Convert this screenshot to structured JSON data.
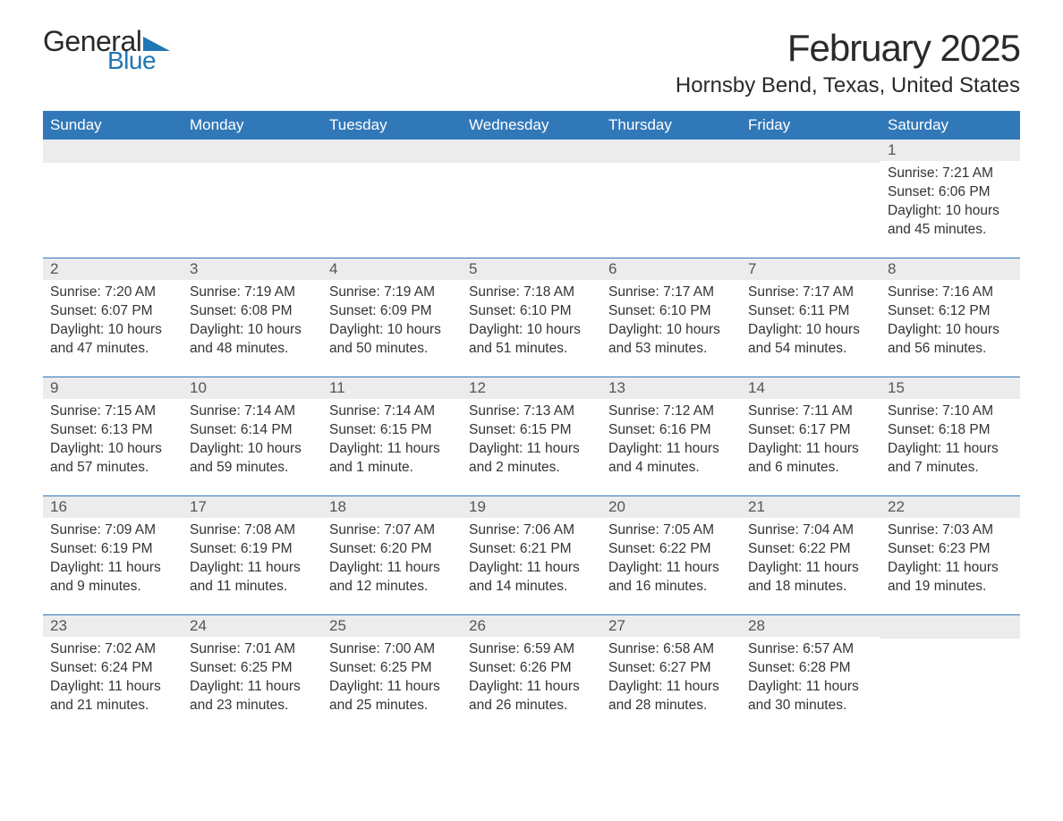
{
  "logo": {
    "text1": "General",
    "text2": "Blue",
    "accent_color": "#1f77b4"
  },
  "title": "February 2025",
  "location": "Hornsby Bend, Texas, United States",
  "colors": {
    "header_bg": "#3178b8",
    "header_text": "#ffffff",
    "daynum_bg": "#ececec",
    "border": "#3178b8",
    "text": "#333333"
  },
  "weekdays": [
    "Sunday",
    "Monday",
    "Tuesday",
    "Wednesday",
    "Thursday",
    "Friday",
    "Saturday"
  ],
  "weeks": [
    [
      null,
      null,
      null,
      null,
      null,
      null,
      {
        "n": "1",
        "sunrise": "7:21 AM",
        "sunset": "6:06 PM",
        "daylight": "10 hours and 45 minutes."
      }
    ],
    [
      {
        "n": "2",
        "sunrise": "7:20 AM",
        "sunset": "6:07 PM",
        "daylight": "10 hours and 47 minutes."
      },
      {
        "n": "3",
        "sunrise": "7:19 AM",
        "sunset": "6:08 PM",
        "daylight": "10 hours and 48 minutes."
      },
      {
        "n": "4",
        "sunrise": "7:19 AM",
        "sunset": "6:09 PM",
        "daylight": "10 hours and 50 minutes."
      },
      {
        "n": "5",
        "sunrise": "7:18 AM",
        "sunset": "6:10 PM",
        "daylight": "10 hours and 51 minutes."
      },
      {
        "n": "6",
        "sunrise": "7:17 AM",
        "sunset": "6:10 PM",
        "daylight": "10 hours and 53 minutes."
      },
      {
        "n": "7",
        "sunrise": "7:17 AM",
        "sunset": "6:11 PM",
        "daylight": "10 hours and 54 minutes."
      },
      {
        "n": "8",
        "sunrise": "7:16 AM",
        "sunset": "6:12 PM",
        "daylight": "10 hours and 56 minutes."
      }
    ],
    [
      {
        "n": "9",
        "sunrise": "7:15 AM",
        "sunset": "6:13 PM",
        "daylight": "10 hours and 57 minutes."
      },
      {
        "n": "10",
        "sunrise": "7:14 AM",
        "sunset": "6:14 PM",
        "daylight": "10 hours and 59 minutes."
      },
      {
        "n": "11",
        "sunrise": "7:14 AM",
        "sunset": "6:15 PM",
        "daylight": "11 hours and 1 minute."
      },
      {
        "n": "12",
        "sunrise": "7:13 AM",
        "sunset": "6:15 PM",
        "daylight": "11 hours and 2 minutes."
      },
      {
        "n": "13",
        "sunrise": "7:12 AM",
        "sunset": "6:16 PM",
        "daylight": "11 hours and 4 minutes."
      },
      {
        "n": "14",
        "sunrise": "7:11 AM",
        "sunset": "6:17 PM",
        "daylight": "11 hours and 6 minutes."
      },
      {
        "n": "15",
        "sunrise": "7:10 AM",
        "sunset": "6:18 PM",
        "daylight": "11 hours and 7 minutes."
      }
    ],
    [
      {
        "n": "16",
        "sunrise": "7:09 AM",
        "sunset": "6:19 PM",
        "daylight": "11 hours and 9 minutes."
      },
      {
        "n": "17",
        "sunrise": "7:08 AM",
        "sunset": "6:19 PM",
        "daylight": "11 hours and 11 minutes."
      },
      {
        "n": "18",
        "sunrise": "7:07 AM",
        "sunset": "6:20 PM",
        "daylight": "11 hours and 12 minutes."
      },
      {
        "n": "19",
        "sunrise": "7:06 AM",
        "sunset": "6:21 PM",
        "daylight": "11 hours and 14 minutes."
      },
      {
        "n": "20",
        "sunrise": "7:05 AM",
        "sunset": "6:22 PM",
        "daylight": "11 hours and 16 minutes."
      },
      {
        "n": "21",
        "sunrise": "7:04 AM",
        "sunset": "6:22 PM",
        "daylight": "11 hours and 18 minutes."
      },
      {
        "n": "22",
        "sunrise": "7:03 AM",
        "sunset": "6:23 PM",
        "daylight": "11 hours and 19 minutes."
      }
    ],
    [
      {
        "n": "23",
        "sunrise": "7:02 AM",
        "sunset": "6:24 PM",
        "daylight": "11 hours and 21 minutes."
      },
      {
        "n": "24",
        "sunrise": "7:01 AM",
        "sunset": "6:25 PM",
        "daylight": "11 hours and 23 minutes."
      },
      {
        "n": "25",
        "sunrise": "7:00 AM",
        "sunset": "6:25 PM",
        "daylight": "11 hours and 25 minutes."
      },
      {
        "n": "26",
        "sunrise": "6:59 AM",
        "sunset": "6:26 PM",
        "daylight": "11 hours and 26 minutes."
      },
      {
        "n": "27",
        "sunrise": "6:58 AM",
        "sunset": "6:27 PM",
        "daylight": "11 hours and 28 minutes."
      },
      {
        "n": "28",
        "sunrise": "6:57 AM",
        "sunset": "6:28 PM",
        "daylight": "11 hours and 30 minutes."
      },
      null
    ]
  ],
  "labels": {
    "sunrise": "Sunrise: ",
    "sunset": "Sunset: ",
    "daylight": "Daylight: "
  }
}
